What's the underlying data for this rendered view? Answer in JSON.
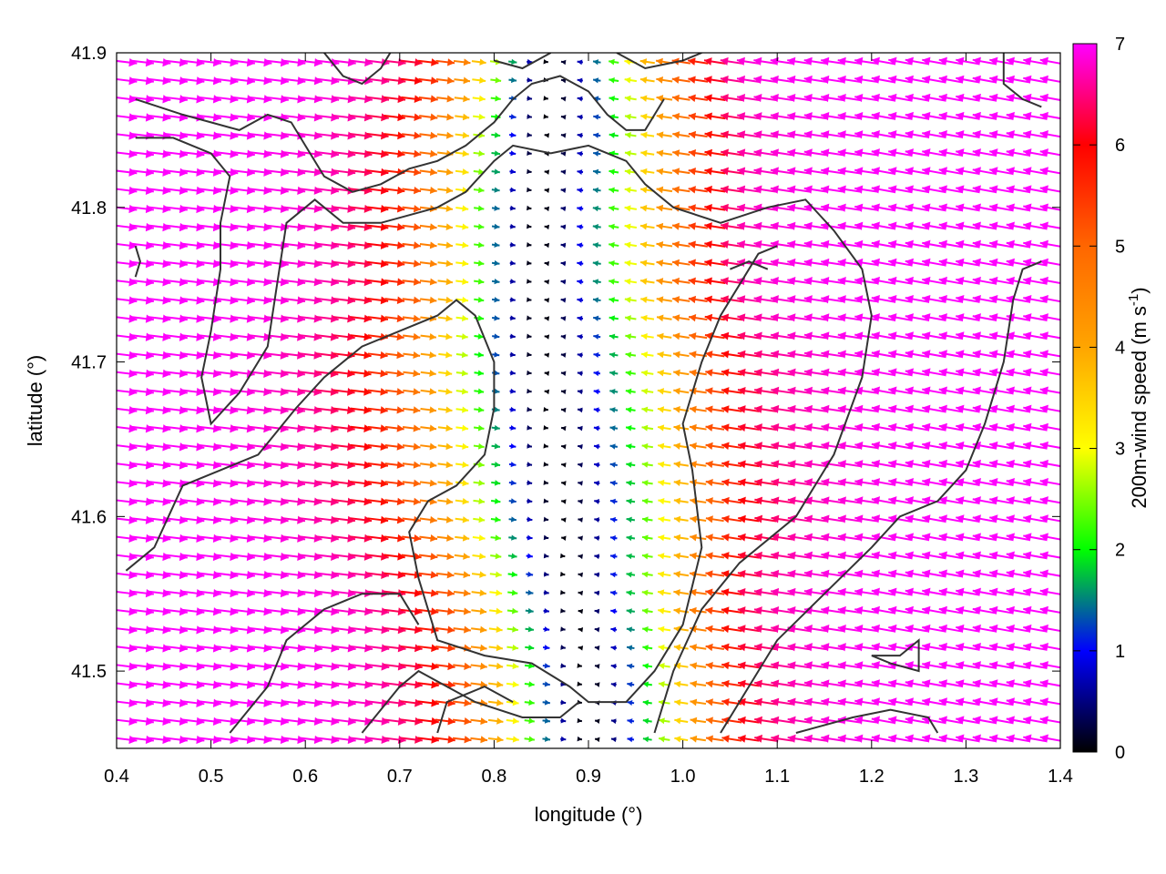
{
  "chart_data": {
    "type": "vector-field",
    "xlabel": "longitude (°)",
    "ylabel": "latitude (°)",
    "xlim": [
      0.4,
      1.4
    ],
    "ylim": [
      41.45,
      41.9
    ],
    "xticks": [
      {
        "value": 0.4,
        "label": "0.4"
      },
      {
        "value": 0.5,
        "label": "0.5"
      },
      {
        "value": 0.6,
        "label": "0.6"
      },
      {
        "value": 0.7,
        "label": "0.7"
      },
      {
        "value": 0.8,
        "label": "0.8"
      },
      {
        "value": 0.9,
        "label": "0.9"
      },
      {
        "value": 1.0,
        "label": "1.0"
      },
      {
        "value": 1.1,
        "label": "1.1"
      },
      {
        "value": 1.2,
        "label": "1.2"
      },
      {
        "value": 1.3,
        "label": "1.3"
      },
      {
        "value": 1.4,
        "label": "1.4"
      }
    ],
    "yticks": [
      {
        "value": 41.5,
        "label": "41.5"
      },
      {
        "value": 41.6,
        "label": "41.6"
      },
      {
        "value": 41.7,
        "label": "41.7"
      },
      {
        "value": 41.8,
        "label": "41.8"
      },
      {
        "value": 41.9,
        "label": "41.9"
      }
    ],
    "colorbar": {
      "label": "200m-wind speed (m s",
      "label_sup": "-1",
      "label_end": ")",
      "range": [
        0,
        7
      ],
      "ticks": [
        {
          "value": 0,
          "label": "0"
        },
        {
          "value": 1,
          "label": "1"
        },
        {
          "value": 2,
          "label": "2"
        },
        {
          "value": 3,
          "label": "3"
        },
        {
          "value": 4,
          "label": "4"
        },
        {
          "value": 5,
          "label": "5"
        },
        {
          "value": 6,
          "label": "6"
        },
        {
          "value": 7,
          "label": "7"
        }
      ],
      "stops": [
        {
          "value": 0,
          "color": "#000000"
        },
        {
          "value": 1,
          "color": "#0000ff"
        },
        {
          "value": 2,
          "color": "#00ff00"
        },
        {
          "value": 3,
          "color": "#ffff00"
        },
        {
          "value": 4,
          "color": "#ffa500"
        },
        {
          "value": 5,
          "color": "#ff6600"
        },
        {
          "value": 6,
          "color": "#ff0000"
        },
        {
          "value": 7,
          "color": "#ff00ff"
        }
      ]
    },
    "field": {
      "grid_nx": 56,
      "grid_ny": 38,
      "convergence_center_lon": 0.86,
      "description_free": true,
      "model": [
        {
          "lat": 41.9,
          "axis_lon": 0.86,
          "calm_width": 0.04
        },
        {
          "lat": 41.85,
          "axis_lon": 0.855,
          "calm_width": 0.05
        },
        {
          "lat": 41.8,
          "axis_lon": 0.845,
          "calm_width": 0.05
        },
        {
          "lat": 41.75,
          "axis_lon": 0.845,
          "calm_width": 0.05
        },
        {
          "lat": 41.7,
          "axis_lon": 0.85,
          "calm_width": 0.06
        },
        {
          "lat": 41.65,
          "axis_lon": 0.86,
          "calm_width": 0.06
        },
        {
          "lat": 41.6,
          "axis_lon": 0.87,
          "calm_width": 0.06
        },
        {
          "lat": 41.55,
          "axis_lon": 0.88,
          "calm_width": 0.05
        },
        {
          "lat": 41.5,
          "axis_lon": 0.895,
          "calm_width": 0.05
        },
        {
          "lat": 41.45,
          "axis_lon": 0.9,
          "calm_width": 0.05
        }
      ],
      "max_speed": 7
    },
    "contours": [
      [
        [
          0.42,
          41.87
        ],
        [
          0.47,
          41.86
        ],
        [
          0.5,
          41.855
        ],
        [
          0.53,
          41.85
        ],
        [
          0.56,
          41.86
        ],
        [
          0.585,
          41.855
        ],
        [
          0.6,
          41.84
        ],
        [
          0.62,
          41.82
        ],
        [
          0.65,
          41.81
        ],
        [
          0.68,
          41.815
        ],
        [
          0.71,
          41.825
        ],
        [
          0.74,
          41.83
        ],
        [
          0.77,
          41.84
        ],
        [
          0.8,
          41.855
        ],
        [
          0.82,
          41.87
        ],
        [
          0.84,
          41.88
        ],
        [
          0.87,
          41.885
        ],
        [
          0.9,
          41.875
        ],
        [
          0.92,
          41.86
        ],
        [
          0.94,
          41.85
        ],
        [
          0.96,
          41.85
        ],
        [
          0.98,
          41.87
        ]
      ],
      [
        [
          0.42,
          41.845
        ],
        [
          0.46,
          41.845
        ],
        [
          0.5,
          41.835
        ],
        [
          0.52,
          41.82
        ],
        [
          0.51,
          41.79
        ],
        [
          0.51,
          41.76
        ],
        [
          0.5,
          41.72
        ],
        [
          0.49,
          41.69
        ],
        [
          0.5,
          41.66
        ],
        [
          0.53,
          41.68
        ],
        [
          0.56,
          41.71
        ],
        [
          0.57,
          41.75
        ],
        [
          0.58,
          41.79
        ],
        [
          0.61,
          41.805
        ],
        [
          0.64,
          41.79
        ],
        [
          0.68,
          41.79
        ],
        [
          0.74,
          41.8
        ],
        [
          0.77,
          41.81
        ],
        [
          0.8,
          41.83
        ],
        [
          0.82,
          41.84
        ],
        [
          0.86,
          41.835
        ],
        [
          0.9,
          41.84
        ],
        [
          0.94,
          41.83
        ],
        [
          0.96,
          41.815
        ],
        [
          0.99,
          41.8
        ],
        [
          1.04,
          41.79
        ],
        [
          1.09,
          41.8
        ],
        [
          1.13,
          41.805
        ],
        [
          1.16,
          41.785
        ],
        [
          1.19,
          41.76
        ],
        [
          1.2,
          41.73
        ],
        [
          1.19,
          41.69
        ],
        [
          1.16,
          41.64
        ],
        [
          1.12,
          41.6
        ],
        [
          1.06,
          41.57
        ],
        [
          1.02,
          41.54
        ],
        [
          0.99,
          41.5
        ],
        [
          0.97,
          41.46
        ]
      ],
      [
        [
          0.41,
          41.565
        ],
        [
          0.44,
          41.58
        ],
        [
          0.47,
          41.62
        ],
        [
          0.51,
          41.63
        ],
        [
          0.55,
          41.64
        ],
        [
          0.59,
          41.67
        ],
        [
          0.62,
          41.69
        ],
        [
          0.66,
          41.71
        ],
        [
          0.7,
          41.72
        ],
        [
          0.74,
          41.73
        ],
        [
          0.76,
          41.74
        ],
        [
          0.78,
          41.73
        ],
        [
          0.8,
          41.7
        ],
        [
          0.8,
          41.67
        ],
        [
          0.79,
          41.64
        ],
        [
          0.76,
          41.62
        ],
        [
          0.73,
          41.61
        ],
        [
          0.71,
          41.59
        ],
        [
          0.72,
          41.56
        ],
        [
          0.74,
          41.52
        ],
        [
          0.79,
          41.51
        ],
        [
          0.84,
          41.505
        ],
        [
          0.88,
          41.49
        ],
        [
          0.9,
          41.48
        ],
        [
          0.94,
          41.48
        ],
        [
          0.97,
          41.5
        ],
        [
          1.0,
          41.53
        ],
        [
          1.02,
          41.58
        ],
        [
          1.01,
          41.63
        ],
        [
          1.0,
          41.66
        ],
        [
          1.02,
          41.7
        ],
        [
          1.04,
          41.73
        ],
        [
          1.06,
          41.75
        ],
        [
          1.08,
          41.77
        ],
        [
          1.1,
          41.775
        ]
      ],
      [
        [
          0.52,
          41.46
        ],
        [
          0.56,
          41.49
        ],
        [
          0.58,
          41.52
        ],
        [
          0.62,
          41.54
        ],
        [
          0.66,
          41.55
        ],
        [
          0.7,
          41.55
        ],
        [
          0.72,
          41.53
        ]
      ],
      [
        [
          0.66,
          41.46
        ],
        [
          0.7,
          41.49
        ],
        [
          0.72,
          41.5
        ],
        [
          0.75,
          41.49
        ],
        [
          0.78,
          41.48
        ],
        [
          0.83,
          41.47
        ],
        [
          0.87,
          41.47
        ],
        [
          0.89,
          41.48
        ]
      ],
      [
        [
          0.74,
          41.46
        ],
        [
          0.75,
          41.48
        ],
        [
          0.79,
          41.49
        ],
        [
          0.82,
          41.48
        ]
      ],
      [
        [
          1.04,
          41.46
        ],
        [
          1.07,
          41.49
        ],
        [
          1.1,
          41.52
        ],
        [
          1.15,
          41.55
        ],
        [
          1.2,
          41.58
        ],
        [
          1.23,
          41.6
        ],
        [
          1.27,
          41.61
        ],
        [
          1.3,
          41.63
        ],
        [
          1.32,
          41.66
        ],
        [
          1.34,
          41.7
        ],
        [
          1.35,
          41.74
        ],
        [
          1.36,
          41.76
        ],
        [
          1.38,
          41.765
        ]
      ],
      [
        [
          1.12,
          41.46
        ],
        [
          1.18,
          41.47
        ],
        [
          1.22,
          41.475
        ],
        [
          1.26,
          41.47
        ],
        [
          1.27,
          41.46
        ]
      ],
      [
        [
          1.2,
          41.51
        ],
        [
          1.23,
          41.51
        ],
        [
          1.25,
          41.52
        ],
        [
          1.25,
          41.5
        ],
        [
          1.22,
          41.505
        ],
        [
          1.2,
          41.51
        ]
      ],
      [
        [
          0.42,
          41.755
        ],
        [
          0.425,
          41.765
        ],
        [
          0.42,
          41.775
        ]
      ],
      [
        [
          0.62,
          41.9
        ],
        [
          0.64,
          41.885
        ],
        [
          0.66,
          41.88
        ],
        [
          0.68,
          41.89
        ],
        [
          0.69,
          41.9
        ]
      ],
      [
        [
          0.8,
          41.895
        ],
        [
          0.83,
          41.89
        ],
        [
          0.86,
          41.9
        ]
      ],
      [
        [
          0.93,
          41.9
        ],
        [
          0.96,
          41.89
        ],
        [
          1.0,
          41.895
        ],
        [
          1.02,
          41.9
        ]
      ],
      [
        [
          1.34,
          41.9
        ],
        [
          1.34,
          41.88
        ],
        [
          1.36,
          41.87
        ],
        [
          1.38,
          41.865
        ]
      ],
      [
        [
          1.05,
          41.76
        ],
        [
          1.07,
          41.765
        ],
        [
          1.09,
          41.76
        ]
      ]
    ]
  }
}
